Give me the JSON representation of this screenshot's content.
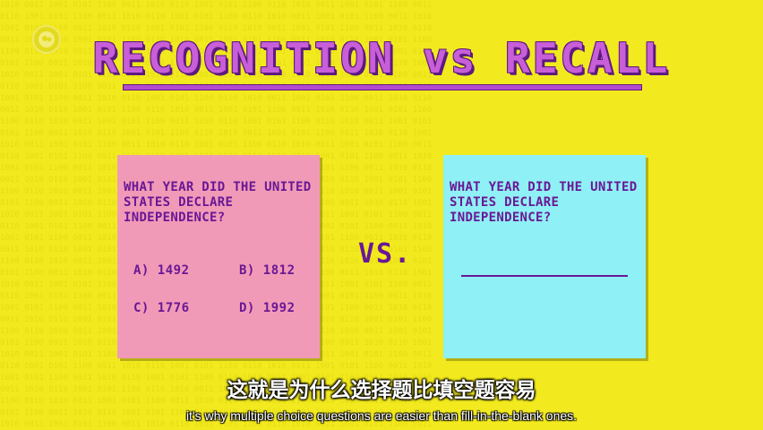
{
  "title": "RECOGNITION vs RECALL",
  "vs_label": "VS.",
  "left_card": {
    "question": "WHAT YEAR DID THE UNITED STATES DECLARE INDEPENDENCE?",
    "options": [
      {
        "label": "A) 1492"
      },
      {
        "label": "B) 1812"
      },
      {
        "label": "C) 1776"
      },
      {
        "label": "D) 1992"
      }
    ],
    "color": "#f19ab7"
  },
  "right_card": {
    "question": "WHAT YEAR DID THE UNITED STATES DECLARE INDEPENDENCE?",
    "color": "#8ff0f5"
  },
  "subtitles": {
    "chinese": "这就是为什么选择题比填空题容易",
    "english": "it's why multiple choice questions are easier than fill-in-the-blank ones."
  },
  "colors": {
    "background": "#f2ea1e",
    "text_purple": "#6a1796",
    "title_purple": "#c85ed8"
  },
  "icons": {
    "logo": "pbs-logo-icon"
  }
}
